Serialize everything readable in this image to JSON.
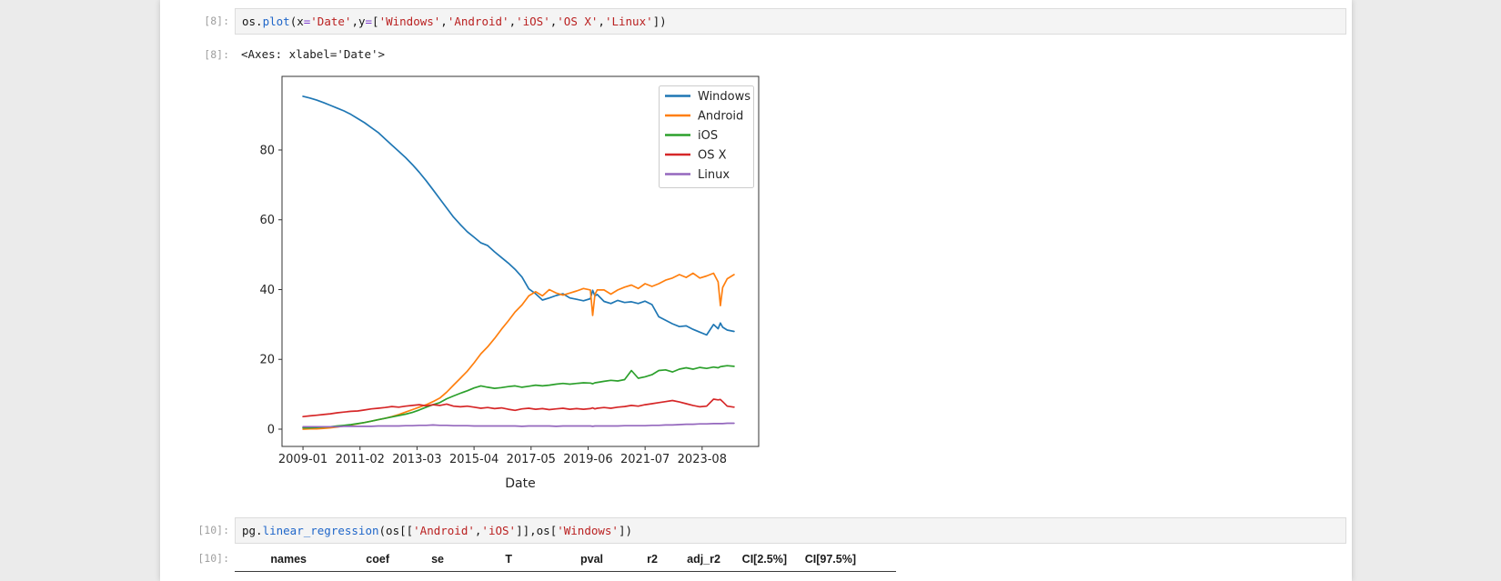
{
  "page": {
    "background": "#ebebeb",
    "panel_background": "#ffffff"
  },
  "cells": {
    "in8": {
      "prompt": "[8]:",
      "tokens": [
        {
          "t": "os.",
          "c": "plain"
        },
        {
          "t": "plot",
          "c": "func"
        },
        {
          "t": "(x",
          "c": "plain"
        },
        {
          "t": "=",
          "c": "op"
        },
        {
          "t": "'Date'",
          "c": "str"
        },
        {
          "t": ",y",
          "c": "plain"
        },
        {
          "t": "=",
          "c": "op"
        },
        {
          "t": "[",
          "c": "plain"
        },
        {
          "t": "'Windows'",
          "c": "str"
        },
        {
          "t": ",",
          "c": "plain"
        },
        {
          "t": "'Android'",
          "c": "str"
        },
        {
          "t": ",",
          "c": "plain"
        },
        {
          "t": "'iOS'",
          "c": "str"
        },
        {
          "t": ",",
          "c": "plain"
        },
        {
          "t": "'OS X'",
          "c": "str"
        },
        {
          "t": ",",
          "c": "plain"
        },
        {
          "t": "'Linux'",
          "c": "str"
        },
        {
          "t": "])",
          "c": "plain"
        }
      ]
    },
    "out8": {
      "prompt": "[8]:",
      "text": "<Axes: xlabel='Date'>"
    },
    "in10": {
      "prompt": "[10]:",
      "tokens": [
        {
          "t": "pg.",
          "c": "plain"
        },
        {
          "t": "linear_regression",
          "c": "func"
        },
        {
          "t": "(os[[",
          "c": "plain"
        },
        {
          "t": "'Android'",
          "c": "str"
        },
        {
          "t": ",",
          "c": "plain"
        },
        {
          "t": "'iOS'",
          "c": "str"
        },
        {
          "t": "]],os[",
          "c": "plain"
        },
        {
          "t": "'Windows'",
          "c": "str"
        },
        {
          "t": "])",
          "c": "plain"
        }
      ]
    },
    "out10": {
      "prompt": "[10]:"
    }
  },
  "output_table": {
    "columns": [
      "names",
      "coef",
      "se",
      "T",
      "pval",
      "r2",
      "adj_r2",
      "CI[2.5%]",
      "CI[97.5%]"
    ]
  },
  "chart_data": {
    "type": "line",
    "xlabel": "Date",
    "x_unit": "months since 2009-01",
    "xlim": [
      -9.2,
      199.8
    ],
    "ylim": [
      -4.95,
      101.1
    ],
    "grid": false,
    "legend_position": "upper right",
    "xticks": {
      "months": [
        0,
        25,
        50,
        75,
        100,
        125,
        150,
        175
      ],
      "labels": [
        "2009-01",
        "2011-02",
        "2013-03",
        "2015-04",
        "2017-05",
        "2019-06",
        "2021-07",
        "2023-08"
      ]
    },
    "yticks": [
      0,
      20,
      40,
      60,
      80
    ],
    "x_months": [
      0,
      3,
      6,
      9,
      12,
      15,
      18,
      21,
      24,
      27,
      30,
      33,
      36,
      39,
      42,
      45,
      48,
      51,
      54,
      57,
      60,
      63,
      66,
      69,
      72,
      75,
      78,
      81,
      84,
      87,
      90,
      93,
      96,
      99,
      102,
      105,
      108,
      111,
      114,
      117,
      120,
      123,
      126,
      127,
      128,
      129,
      132,
      135,
      138,
      141,
      144,
      147,
      150,
      153,
      156,
      159,
      162,
      165,
      168,
      171,
      174,
      177,
      180,
      182,
      183,
      184,
      186,
      189
    ],
    "series": [
      {
        "name": "Windows",
        "color": "#1f77b4",
        "values": [
          95.4,
          94.9,
          94.3,
          93.6,
          92.8,
          92.0,
          91.2,
          90.2,
          89.0,
          87.8,
          86.4,
          85.0,
          83.2,
          81.4,
          79.6,
          77.8,
          75.8,
          73.6,
          71.2,
          68.6,
          66.0,
          63.4,
          60.8,
          58.6,
          56.6,
          55.0,
          53.4,
          52.6,
          50.8,
          49.2,
          47.6,
          45.8,
          43.6,
          40.2,
          38.8,
          37.0,
          37.6,
          38.3,
          38.8,
          37.6,
          37.2,
          36.8,
          37.4,
          39.8,
          38.2,
          38.6,
          36.6,
          36.0,
          36.9,
          36.3,
          36.5,
          36.0,
          36.7,
          35.7,
          32.2,
          31.2,
          30.2,
          29.4,
          29.6,
          28.6,
          27.8,
          27.0,
          30.0,
          28.8,
          30.4,
          29.2,
          28.4,
          28.0
        ]
      },
      {
        "name": "Android",
        "color": "#ff7f0e",
        "values": [
          0.0,
          0.1,
          0.1,
          0.2,
          0.4,
          0.6,
          0.9,
          1.2,
          1.5,
          1.9,
          2.3,
          2.7,
          3.1,
          3.6,
          4.2,
          4.9,
          5.6,
          6.3,
          7.0,
          7.9,
          8.9,
          10.6,
          12.6,
          14.6,
          16.6,
          19.0,
          21.6,
          23.6,
          26.0,
          28.6,
          31.0,
          33.6,
          35.6,
          38.2,
          39.4,
          38.2,
          40.0,
          39.0,
          38.4,
          39.0,
          39.6,
          40.3,
          39.9,
          32.6,
          38.6,
          39.9,
          39.9,
          38.7,
          39.9,
          40.7,
          41.3,
          40.3,
          41.7,
          40.9,
          41.7,
          42.7,
          43.3,
          44.3,
          43.5,
          44.7,
          43.3,
          43.9,
          44.7,
          42.2,
          35.4,
          40.6,
          43.1,
          44.3
        ]
      },
      {
        "name": "iOS",
        "color": "#2ca02c",
        "values": [
          0.4,
          0.4,
          0.5,
          0.6,
          0.7,
          0.9,
          1.1,
          1.3,
          1.6,
          1.9,
          2.3,
          2.7,
          3.1,
          3.5,
          3.9,
          4.3,
          4.8,
          5.5,
          6.3,
          7.0,
          7.6,
          8.7,
          9.5,
          10.3,
          11.0,
          11.8,
          12.4,
          12.0,
          11.7,
          11.9,
          12.2,
          12.4,
          12.0,
          12.3,
          12.6,
          12.4,
          12.6,
          12.9,
          13.1,
          12.9,
          13.1,
          13.3,
          13.2,
          13.0,
          13.3,
          13.4,
          13.7,
          14.0,
          13.8,
          14.2,
          16.8,
          14.6,
          15.0,
          15.6,
          16.8,
          17.0,
          16.4,
          17.2,
          17.6,
          17.2,
          17.7,
          17.4,
          17.8,
          17.6,
          17.9,
          18.0,
          18.2,
          18.0
        ]
      },
      {
        "name": "OS X",
        "color": "#d62728",
        "values": [
          3.6,
          3.8,
          4.0,
          4.2,
          4.4,
          4.7,
          4.9,
          5.1,
          5.2,
          5.5,
          5.8,
          6.0,
          6.2,
          6.5,
          6.3,
          6.6,
          6.8,
          7.0,
          6.7,
          7.0,
          6.8,
          7.2,
          6.6,
          6.4,
          6.6,
          6.3,
          6.0,
          6.2,
          5.9,
          6.1,
          5.7,
          5.4,
          5.8,
          6.0,
          5.7,
          5.9,
          5.6,
          5.8,
          6.0,
          5.7,
          5.9,
          5.7,
          5.9,
          6.1,
          5.8,
          6.0,
          6.2,
          6.0,
          6.3,
          6.5,
          6.8,
          6.6,
          7.0,
          7.3,
          7.6,
          7.9,
          8.2,
          7.8,
          7.3,
          6.8,
          6.4,
          6.6,
          8.6,
          8.4,
          8.5,
          7.9,
          6.6,
          6.3
        ]
      },
      {
        "name": "Linux",
        "color": "#9467bd",
        "values": [
          0.7,
          0.7,
          0.7,
          0.7,
          0.7,
          0.7,
          0.8,
          0.8,
          0.8,
          0.8,
          0.8,
          0.9,
          0.9,
          0.9,
          0.9,
          1.0,
          1.0,
          1.1,
          1.1,
          1.2,
          1.1,
          1.1,
          1.0,
          1.0,
          1.0,
          0.9,
          0.9,
          0.9,
          0.9,
          0.9,
          0.9,
          0.9,
          0.8,
          0.9,
          0.9,
          0.9,
          0.9,
          0.8,
          0.9,
          0.9,
          0.9,
          0.9,
          0.9,
          0.8,
          0.9,
          0.9,
          0.9,
          0.9,
          0.9,
          1.0,
          1.0,
          1.0,
          1.0,
          1.1,
          1.1,
          1.2,
          1.2,
          1.3,
          1.4,
          1.4,
          1.5,
          1.5,
          1.6,
          1.6,
          1.6,
          1.6,
          1.7,
          1.7
        ]
      }
    ]
  }
}
